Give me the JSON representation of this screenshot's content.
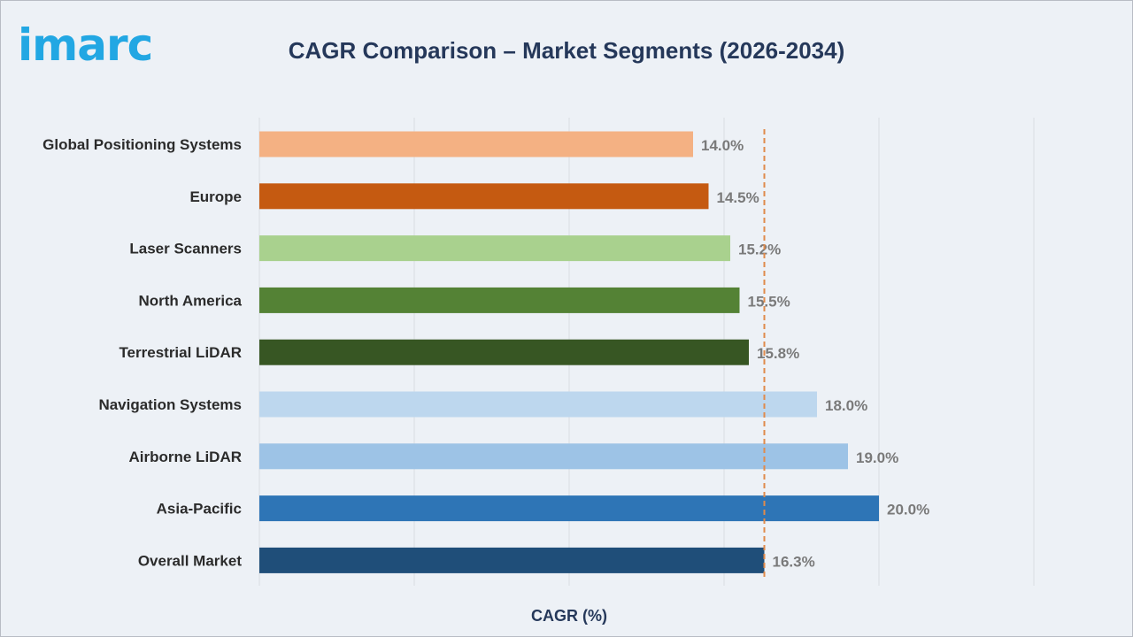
{
  "logo": {
    "text": "imarc"
  },
  "chart_data": {
    "type": "bar",
    "orientation": "horizontal",
    "title": "CAGR Comparison – Market Segments (2026-2034)",
    "xlabel": "CAGR (%)",
    "ylabel": "",
    "xlim": [
      0,
      25
    ],
    "grid": true,
    "reference_line": {
      "value": 16.3,
      "style": "dashed",
      "color": "#e08a4b"
    },
    "categories": [
      "Global Positioning Systems",
      "Europe",
      "Laser Scanners",
      "North America",
      "Terrestrial LiDAR",
      "Navigation Systems",
      "Airborne LiDAR",
      "Asia-Pacific",
      "Overall Market"
    ],
    "values": [
      14.0,
      14.5,
      15.2,
      15.5,
      15.8,
      18.0,
      19.0,
      20.0,
      16.3
    ],
    "value_labels": [
      "14.0%",
      "14.5%",
      "15.2%",
      "15.5%",
      "15.8%",
      "18.0%",
      "19.0%",
      "20.0%",
      "16.3%"
    ],
    "colors": [
      "#f4b183",
      "#c55a11",
      "#a9d18e",
      "#548235",
      "#375623",
      "#bdd7ee",
      "#9dc3e6",
      "#2e75b6",
      "#1f4e79"
    ]
  }
}
